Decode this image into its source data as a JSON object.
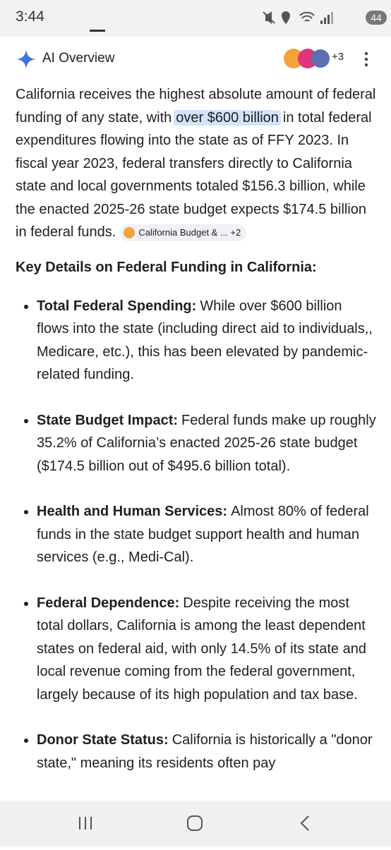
{
  "status_bar": {
    "time": "3:44",
    "battery": "44"
  },
  "header": {
    "title": "AI Overview",
    "source_count": "+3"
  },
  "summary": {
    "text_before": "California receives the highest absolute amount of federal funding of any state, with",
    "highlight": "over $600 billion",
    "text_after": "in total federal expenditures flowing into the state as of FFY 2023. In fiscal year 2023, federal transfers directly to California state and local governments totaled $156.3 billion, while the enacted 2025-26 state budget expects $174.5 billion in federal funds.",
    "source_chip": {
      "label": "California Budget & ...",
      "count": "+2"
    }
  },
  "section_heading": "Key Details on Federal Funding in California:",
  "bullets": [
    {
      "label": "Total Federal Spending:",
      "text": "While over $600 billion flows into the state (including direct aid to individuals,, Medicare, etc.), this has been elevated by pandemic-related funding."
    },
    {
      "label": "State Budget Impact:",
      "text": "Federal funds make up roughly 35.2% of California’s enacted 2025-26 state budget ($174.5 billion out of $495.6 billion total)."
    },
    {
      "label": "Health and Human Services:",
      "text": "Almost 80% of federal funds in the state budget support health and human services (e.g., Medi-Cal)."
    },
    {
      "label": "Federal Dependence:",
      "text": "Despite receiving the most total dollars, California is among the least dependent states on federal aid, with only 14.5% of its state and local revenue coming from the federal government, largely because of its high population and tax base."
    },
    {
      "label": "Donor State Status:",
      "text": "California is historically a \"donor state,\" meaning its residents often pay"
    }
  ]
}
